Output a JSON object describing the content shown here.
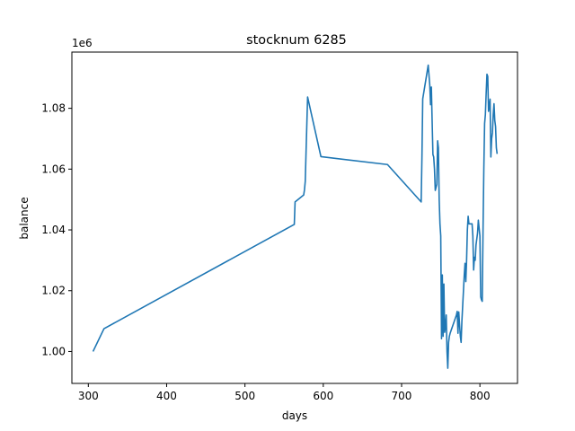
{
  "chart_data": {
    "type": "line",
    "title": "stocknum 6285",
    "xlabel": "days",
    "ylabel": "balance",
    "y_offset_label": "1e6",
    "xlim": [
      279,
      848
    ],
    "ylim": [
      0.9895,
      1.0985
    ],
    "x_ticks": [
      300,
      400,
      500,
      600,
      700,
      800
    ],
    "x_tick_labels": [
      "300",
      "400",
      "500",
      "600",
      "700",
      "800"
    ],
    "y_ticks": [
      1.0,
      1.02,
      1.04,
      1.06,
      1.08
    ],
    "y_tick_labels": [
      "1.00",
      "1.02",
      "1.04",
      "1.06",
      "1.08"
    ],
    "grid": false,
    "line_color": "#1f77b4",
    "series": [
      {
        "x": [
          306,
          320,
          563,
          564,
          575,
          576,
          577,
          578,
          580,
          597,
          682,
          725,
          726,
          727,
          734,
          736,
          737,
          738,
          739,
          740,
          741,
          742,
          743,
          744,
          745,
          746,
          747,
          748,
          749,
          750,
          751,
          752,
          753,
          754,
          755,
          756,
          757,
          758,
          759,
          760,
          761,
          762,
          770,
          771,
          772,
          773,
          774,
          775,
          776,
          777,
          778,
          779,
          780,
          781,
          782,
          783,
          784,
          785,
          786,
          788,
          790,
          791,
          792,
          793,
          794,
          795,
          797,
          798,
          800,
          801,
          802,
          803,
          804,
          805,
          806,
          807,
          808,
          809,
          810,
          811,
          812,
          813,
          814,
          815,
          816,
          817,
          818,
          819,
          820,
          821,
          822
        ],
        "y": [
          1.0,
          1.0075,
          1.0418,
          1.0492,
          1.0515,
          1.0532,
          1.056,
          1.0655,
          1.0837,
          1.0641,
          1.0615,
          1.0492,
          1.064,
          1.0831,
          1.0942,
          1.0876,
          1.0812,
          1.087,
          1.076,
          1.0648,
          1.064,
          1.06,
          1.053,
          1.054,
          1.055,
          1.0693,
          1.067,
          1.05,
          1.042,
          1.038,
          1.0042,
          1.0252,
          1.005,
          1.0222,
          1.0063,
          1.008,
          1.012,
          1.0,
          0.9945,
          1.003,
          1.005,
          1.006,
          1.012,
          1.0132,
          1.006,
          1.013,
          1.009,
          1.005,
          1.003,
          1.01,
          1.015,
          1.02,
          1.025,
          1.029,
          1.023,
          1.03,
          1.04,
          1.0445,
          1.042,
          1.042,
          1.042,
          1.038,
          1.0268,
          1.031,
          1.03,
          1.035,
          1.039,
          1.0432,
          1.038,
          1.018,
          1.017,
          1.0165,
          1.04,
          1.06,
          1.075,
          1.078,
          1.085,
          1.0912,
          1.0905,
          1.079,
          1.081,
          1.083,
          1.064,
          1.07,
          1.072,
          1.078,
          1.0815,
          1.076,
          1.074,
          1.067,
          1.065
        ]
      }
    ]
  }
}
